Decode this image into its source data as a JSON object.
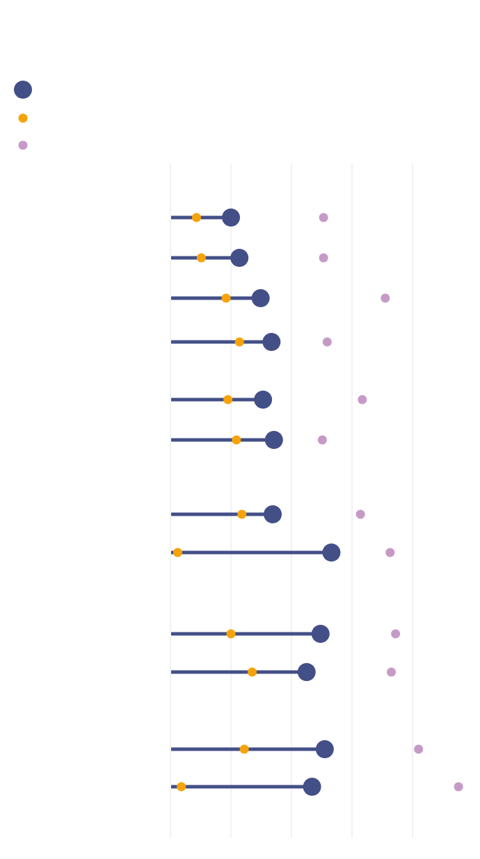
{
  "chart_data": {
    "type": "dot",
    "title": "",
    "subtitle": "",
    "xlabel": "",
    "ylabel": "",
    "xlim": [
      0,
      50
    ],
    "grid": true,
    "gridlines_x": [
      0,
      10,
      20,
      30,
      40
    ],
    "legend": {
      "position": "top-left",
      "entries": [
        {
          "series": 0,
          "label": ""
        },
        {
          "series": 1,
          "label": ""
        },
        {
          "series": 2,
          "label": ""
        }
      ]
    },
    "colors": {
      "series0": "#434f87",
      "series1": "#f5a30a",
      "series2": "#c69ac7",
      "grid": "#e4e4e4"
    },
    "rows": [
      {
        "group": 0,
        "values": [
          10.0,
          4.3,
          25.3
        ]
      },
      {
        "group": 0,
        "values": [
          11.4,
          5.1,
          25.3
        ]
      },
      {
        "group": 0,
        "values": [
          14.9,
          9.2,
          35.5
        ]
      },
      {
        "group": 0,
        "values": [
          16.7,
          11.4,
          25.9
        ]
      },
      {
        "group": 1,
        "values": [
          15.3,
          9.5,
          31.7
        ]
      },
      {
        "group": 1,
        "values": [
          17.1,
          10.9,
          25.1
        ]
      },
      {
        "group": 2,
        "values": [
          16.9,
          11.8,
          31.4
        ]
      },
      {
        "group": 2,
        "values": [
          26.6,
          1.2,
          36.3
        ]
      },
      {
        "group": 3,
        "values": [
          24.8,
          10.0,
          37.2
        ]
      },
      {
        "group": 3,
        "values": [
          22.5,
          13.5,
          36.5
        ]
      },
      {
        "group": 4,
        "values": [
          25.5,
          12.2,
          41.0
        ]
      },
      {
        "group": 4,
        "values": [
          23.4,
          1.8,
          47.6
        ]
      }
    ],
    "series": [
      {
        "values": [
          10.0,
          11.4,
          14.9,
          16.7,
          15.3,
          17.1,
          16.9,
          26.6,
          24.8,
          22.5,
          25.5,
          23.4
        ]
      },
      {
        "values": [
          4.3,
          5.1,
          9.2,
          11.4,
          9.5,
          10.9,
          11.8,
          1.2,
          10.0,
          13.5,
          12.2,
          1.8
        ]
      },
      {
        "values": [
          25.3,
          25.3,
          35.5,
          25.9,
          31.7,
          25.1,
          31.4,
          36.3,
          37.2,
          36.5,
          41.0,
          47.6
        ]
      }
    ]
  }
}
